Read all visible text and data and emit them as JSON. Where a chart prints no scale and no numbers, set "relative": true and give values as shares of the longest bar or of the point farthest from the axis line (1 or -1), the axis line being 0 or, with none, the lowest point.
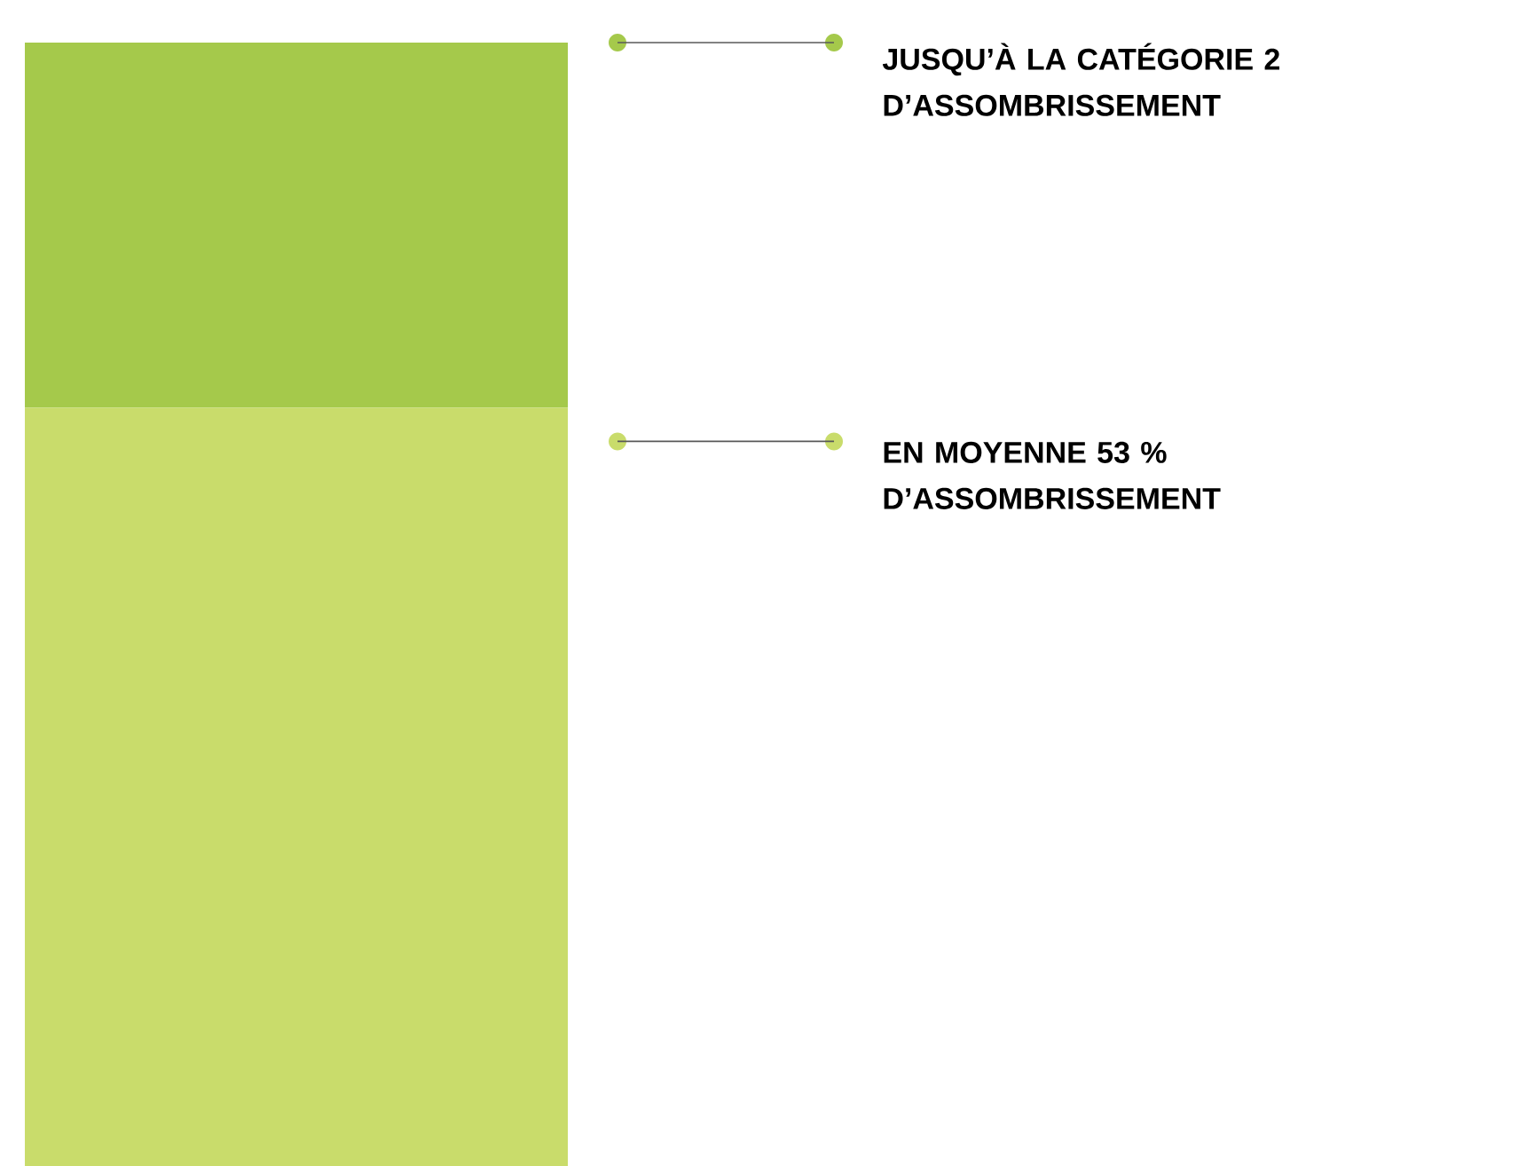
{
  "chart_data": {
    "type": "bar",
    "stacked": true,
    "relative": true,
    "categories": [
      null
    ],
    "series": [
      {
        "color": "#c9dc6b",
        "values": [
          0.675
        ]
      },
      {
        "color": "#a5c94b",
        "values": [
          0.325
        ]
      }
    ],
    "annotations": [
      "JUSQU’À LA CATÉGORIE 2 D’ASSOMBRISSEMENT",
      "EN MOYENNE 53 % D’ASSOMBRISSEMENT"
    ]
  }
}
